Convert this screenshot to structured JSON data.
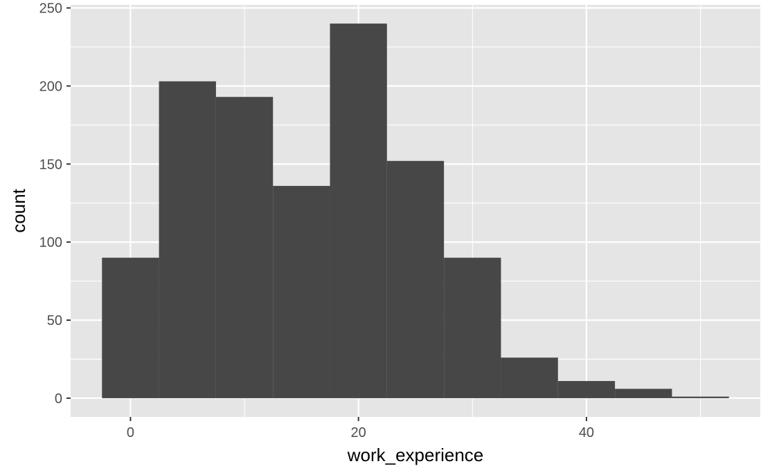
{
  "chart_data": {
    "type": "bar",
    "subtype": "histogram",
    "xlabel": "work_experience",
    "ylabel": "count",
    "xlim": [
      -5.25,
      55.25
    ],
    "ylim": [
      -12,
      252
    ],
    "x_ticks": [
      0,
      20,
      40
    ],
    "y_ticks": [
      0,
      50,
      100,
      150,
      200,
      250
    ],
    "x_tick_labels": [
      "0",
      "20",
      "40"
    ],
    "y_tick_labels": [
      "0",
      "50",
      "100",
      "150",
      "200",
      "250"
    ],
    "bin_width": 5,
    "bins": [
      {
        "x0": -2.5,
        "x1": 2.5,
        "count": 90
      },
      {
        "x0": 2.5,
        "x1": 7.5,
        "count": 203
      },
      {
        "x0": 7.5,
        "x1": 12.5,
        "count": 193
      },
      {
        "x0": 12.5,
        "x1": 17.5,
        "count": 136
      },
      {
        "x0": 17.5,
        "x1": 22.5,
        "count": 240
      },
      {
        "x0": 22.5,
        "x1": 27.5,
        "count": 152
      },
      {
        "x0": 27.5,
        "x1": 32.5,
        "count": 90
      },
      {
        "x0": 32.5,
        "x1": 37.5,
        "count": 26
      },
      {
        "x0": 37.5,
        "x1": 42.5,
        "count": 11
      },
      {
        "x0": 42.5,
        "x1": 47.5,
        "count": 6
      },
      {
        "x0": 47.5,
        "x1": 52.5,
        "count": 1
      }
    ],
    "grid": true,
    "panel_background": "#e5e5e5",
    "bar_color": "#474747",
    "grid_color": "#ffffff"
  }
}
